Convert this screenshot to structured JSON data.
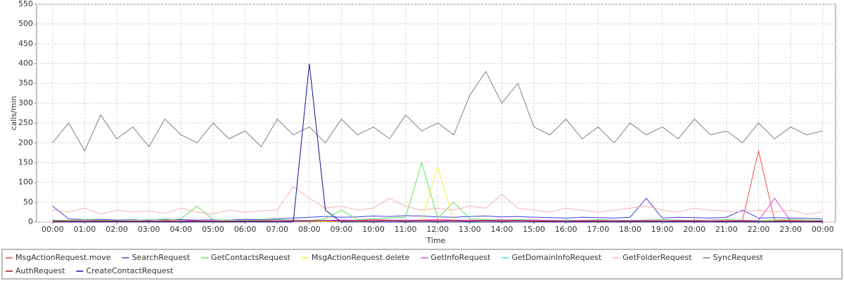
{
  "chart_data": {
    "type": "line",
    "x_label": "Time",
    "y_label": "calls/min",
    "x": [
      0,
      0.5,
      1,
      1.5,
      2,
      2.5,
      3,
      3.5,
      4,
      4.5,
      5,
      5.5,
      6,
      6.5,
      7,
      7.5,
      8,
      8.5,
      9,
      9.5,
      10,
      10.5,
      11,
      11.5,
      12,
      12.5,
      13,
      13.5,
      14,
      14.5,
      15,
      15.5,
      16,
      16.5,
      17,
      17.5,
      18,
      18.5,
      19,
      19.5,
      20,
      20.5,
      21,
      21.5,
      22,
      22.5,
      23,
      23.5,
      24
    ],
    "xlim": [
      -0.5,
      24.4
    ],
    "ylim": [
      0,
      550
    ],
    "xticks": [
      {
        "value": 0,
        "label": "00:00"
      },
      {
        "value": 1,
        "label": "01:00"
      },
      {
        "value": 2,
        "label": "02:00"
      },
      {
        "value": 3,
        "label": "03:00"
      },
      {
        "value": 4,
        "label": "04:00"
      },
      {
        "value": 5,
        "label": "05:00"
      },
      {
        "value": 6,
        "label": "06:00"
      },
      {
        "value": 7,
        "label": "07:00"
      },
      {
        "value": 8,
        "label": "08:00"
      },
      {
        "value": 9,
        "label": "09:00"
      },
      {
        "value": 10,
        "label": "10:00"
      },
      {
        "value": 11,
        "label": "11:00"
      },
      {
        "value": 12,
        "label": "12:00"
      },
      {
        "value": 13,
        "label": "13:00"
      },
      {
        "value": 14,
        "label": "14:00"
      },
      {
        "value": 15,
        "label": "15:00"
      },
      {
        "value": 16,
        "label": "16:00"
      },
      {
        "value": 17,
        "label": "17:00"
      },
      {
        "value": 18,
        "label": "18:00"
      },
      {
        "value": 19,
        "label": "19:00"
      },
      {
        "value": 20,
        "label": "20:00"
      },
      {
        "value": 21,
        "label": "21:00"
      },
      {
        "value": 22,
        "label": "22:00"
      },
      {
        "value": 23,
        "label": "23:00"
      },
      {
        "value": 24,
        "label": "00:00"
      }
    ],
    "yticks": [
      0,
      50,
      100,
      150,
      200,
      250,
      300,
      350,
      400,
      450,
      500,
      550
    ],
    "grid": true,
    "series": [
      {
        "name": "MsgActionRequest.move",
        "color": "#f05050",
        "values": [
          3,
          2,
          4,
          3,
          2,
          3,
          2,
          3,
          4,
          3,
          2,
          3,
          2,
          3,
          4,
          5,
          4,
          3,
          5,
          4,
          6,
          5,
          4,
          5,
          6,
          5,
          4,
          5,
          6,
          5,
          4,
          3,
          4,
          3,
          4,
          3,
          4,
          5,
          4,
          3,
          5,
          4,
          3,
          4,
          180,
          3,
          4,
          3,
          3
        ]
      },
      {
        "name": "SearchRequest",
        "color": "#4040e0",
        "values": [
          40,
          8,
          6,
          7,
          5,
          6,
          5,
          7,
          6,
          5,
          6,
          5,
          7,
          6,
          8,
          10,
          12,
          14,
          12,
          13,
          15,
          14,
          16,
          15,
          13,
          12,
          14,
          15,
          13,
          14,
          12,
          11,
          10,
          12,
          11,
          10,
          12,
          60,
          10,
          12,
          11,
          10,
          12,
          30,
          10,
          11,
          10,
          9,
          8
        ]
      },
      {
        "name": "GetContactsRequest",
        "color": "#60e060",
        "values": [
          5,
          4,
          6,
          5,
          4,
          5,
          6,
          5,
          8,
          40,
          6,
          5,
          4,
          5,
          6,
          5,
          4,
          8,
          30,
          6,
          8,
          10,
          12,
          150,
          10,
          50,
          8,
          6,
          5,
          6,
          5,
          4,
          5,
          4,
          6,
          5,
          4,
          5,
          6,
          5,
          4,
          5,
          6,
          5,
          4,
          5,
          6,
          5,
          4
        ]
      },
      {
        "name": "MsgActionRequest.delete",
        "color": "#f0f040",
        "values": [
          2,
          1,
          2,
          1,
          2,
          1,
          2,
          1,
          2,
          1,
          2,
          1,
          2,
          1,
          2,
          1,
          2,
          1,
          2,
          1,
          2,
          3,
          2,
          3,
          140,
          3,
          2,
          3,
          2,
          3,
          2,
          1,
          2,
          1,
          2,
          1,
          2,
          1,
          2,
          1,
          2,
          1,
          2,
          1,
          2,
          1,
          2,
          1,
          2
        ]
      },
      {
        "name": "GetInfoRequest",
        "color": "#e040e0",
        "values": [
          3,
          2,
          3,
          2,
          3,
          2,
          3,
          2,
          3,
          2,
          3,
          2,
          3,
          2,
          3,
          4,
          3,
          4,
          5,
          4,
          5,
          4,
          5,
          4,
          5,
          4,
          5,
          4,
          5,
          4,
          5,
          4,
          3,
          4,
          3,
          4,
          3,
          4,
          3,
          4,
          3,
          4,
          3,
          4,
          3,
          60,
          3,
          2,
          3
        ]
      },
      {
        "name": "GetDomainInfoRequest",
        "color": "#40e0e0",
        "values": [
          2,
          1,
          2,
          1,
          2,
          1,
          2,
          1,
          2,
          1,
          2,
          1,
          2,
          1,
          2,
          1,
          2,
          3,
          2,
          3,
          2,
          3,
          2,
          3,
          2,
          3,
          2,
          3,
          2,
          3,
          2,
          1,
          2,
          1,
          2,
          1,
          2,
          1,
          2,
          1,
          2,
          1,
          2,
          1,
          2,
          1,
          2,
          1,
          2
        ]
      },
      {
        "name": "GetFolderRequest",
        "color": "#f8b0b0",
        "values": [
          30,
          25,
          35,
          20,
          30,
          25,
          28,
          22,
          35,
          25,
          20,
          30,
          25,
          28,
          30,
          90,
          60,
          35,
          40,
          30,
          35,
          60,
          40,
          30,
          35,
          30,
          40,
          35,
          70,
          35,
          30,
          25,
          35,
          30,
          25,
          30,
          35,
          40,
          30,
          25,
          35,
          30,
          28,
          25,
          30,
          25,
          30,
          20,
          25
        ]
      },
      {
        "name": "SyncRequest",
        "color": "#808080",
        "values": [
          200,
          250,
          180,
          270,
          210,
          240,
          190,
          260,
          220,
          200,
          250,
          210,
          230,
          190,
          260,
          220,
          240,
          200,
          260,
          220,
          240,
          210,
          270,
          230,
          250,
          220,
          320,
          380,
          300,
          350,
          240,
          220,
          260,
          210,
          240,
          200,
          250,
          220,
          240,
          210,
          260,
          220,
          230,
          200,
          250,
          210,
          240,
          220,
          230
        ]
      },
      {
        "name": "AuthRequest",
        "color": "#a01010",
        "values": [
          2,
          2,
          1,
          2,
          2,
          1,
          2,
          2,
          1,
          2,
          2,
          1,
          2,
          2,
          1,
          2,
          2,
          3,
          2,
          3,
          2,
          3,
          2,
          3,
          2,
          3,
          2,
          3,
          2,
          3,
          2,
          2,
          1,
          2,
          2,
          1,
          2,
          2,
          1,
          2,
          2,
          1,
          2,
          2,
          1,
          2,
          2,
          1,
          2
        ]
      },
      {
        "name": "CreateContactRequest",
        "color": "#101090",
        "values": [
          0,
          0,
          0,
          0,
          0,
          0,
          0,
          0,
          0,
          0,
          0,
          0,
          0,
          0,
          0,
          0,
          400,
          30,
          0,
          0,
          0,
          0,
          0,
          0,
          0,
          0,
          0,
          0,
          0,
          0,
          0,
          0,
          0,
          0,
          0,
          0,
          0,
          0,
          0,
          0,
          0,
          0,
          0,
          0,
          0,
          0,
          0,
          0,
          0
        ]
      }
    ]
  }
}
